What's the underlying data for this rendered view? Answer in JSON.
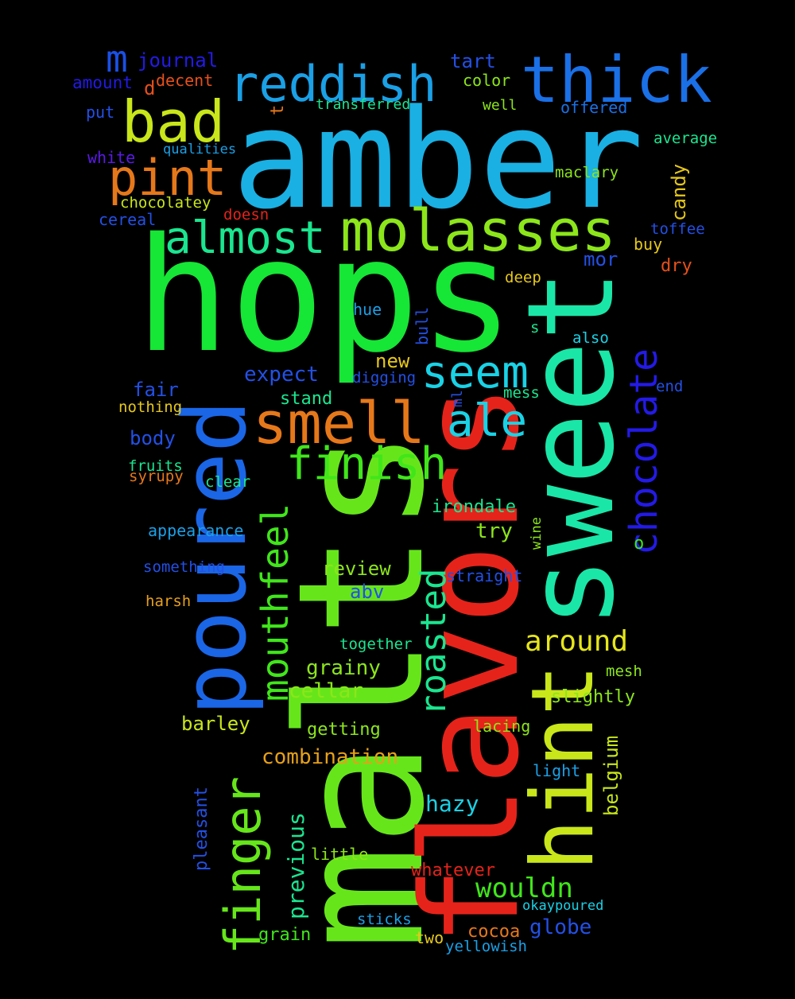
{
  "words": [
    {
      "text": "amber",
      "color": "#1ab0e3"
    },
    {
      "text": "hops",
      "color": "#16e635"
    },
    {
      "text": "malts",
      "color": "#66e61a"
    },
    {
      "text": "flavors",
      "color": "#e6231a"
    },
    {
      "text": "sweet",
      "color": "#1ae6a7"
    },
    {
      "text": "poured",
      "color": "#1a66e6"
    },
    {
      "text": "hint",
      "color": "#c8e61a"
    },
    {
      "text": "thick",
      "color": "#1a70e6"
    },
    {
      "text": "reddish",
      "color": "#1aa0e6"
    },
    {
      "text": "bad",
      "color": "#c8e61a"
    },
    {
      "text": "molasses",
      "color": "#8ce61a"
    },
    {
      "text": "smell",
      "color": "#e6781a"
    },
    {
      "text": "pint",
      "color": "#e6781a"
    },
    {
      "text": "almost",
      "color": "#1ae690"
    },
    {
      "text": "finish",
      "color": "#40e61a"
    },
    {
      "text": "seem",
      "color": "#1ad2e6"
    },
    {
      "text": "ale",
      "color": "#1ad2e6"
    },
    {
      "text": "mouthfeel",
      "color": "#40e61a"
    },
    {
      "text": "chocolate",
      "color": "#231ae6"
    },
    {
      "text": "finger",
      "color": "#66e61a"
    },
    {
      "text": "roasted",
      "color": "#1ae690"
    },
    {
      "text": "m",
      "color": "#1a50e6"
    },
    {
      "text": "journal",
      "color": "#231ae6"
    },
    {
      "text": "amount",
      "color": "#231ae6"
    },
    {
      "text": "d",
      "color": "#e6501a"
    },
    {
      "text": "decent",
      "color": "#e6501a"
    },
    {
      "text": "tart",
      "color": "#2350e6"
    },
    {
      "text": "color",
      "color": "#8ce61a"
    },
    {
      "text": "transferred",
      "color": "#1ae690"
    },
    {
      "text": "well",
      "color": "#8ce61a"
    },
    {
      "text": "offered",
      "color": "#1a70e6"
    },
    {
      "text": "t",
      "color": "#e6781a"
    },
    {
      "text": "put",
      "color": "#2350e6"
    },
    {
      "text": "white",
      "color": "#5a1ae6"
    },
    {
      "text": "qualities",
      "color": "#1aa0e6"
    },
    {
      "text": "average",
      "color": "#1ae690"
    },
    {
      "text": "maclary",
      "color": "#8ce61a"
    },
    {
      "text": "candy",
      "color": "#e6c81a"
    },
    {
      "text": "chocolatey",
      "color": "#c8e61a"
    },
    {
      "text": "cereal",
      "color": "#2350e6"
    },
    {
      "text": "doesn",
      "color": "#e6231a"
    },
    {
      "text": "toffee",
      "color": "#2350e6"
    },
    {
      "text": "buy",
      "color": "#e6c81a"
    },
    {
      "text": "dry",
      "color": "#e6501a"
    },
    {
      "text": "mor",
      "color": "#2350e6"
    },
    {
      "text": "deep",
      "color": "#e6c81a"
    },
    {
      "text": "hue",
      "color": "#1aa0e6"
    },
    {
      "text": "bull",
      "color": "#2350e6"
    },
    {
      "text": "s",
      "color": "#1ae690"
    },
    {
      "text": "also",
      "color": "#1ad2e6"
    },
    {
      "text": "expect",
      "color": "#2350e6"
    },
    {
      "text": "new",
      "color": "#e6c81a"
    },
    {
      "text": "digging",
      "color": "#2350e6"
    },
    {
      "text": "mess",
      "color": "#1ae690"
    },
    {
      "text": "end",
      "color": "#2350e6"
    },
    {
      "text": "fair",
      "color": "#2350e6"
    },
    {
      "text": "stand",
      "color": "#1ae690"
    },
    {
      "text": "ml",
      "color": "#2350e6"
    },
    {
      "text": "nothing",
      "color": "#e6c81a"
    },
    {
      "text": "body",
      "color": "#2350e6"
    },
    {
      "text": "fruits",
      "color": "#1ae690"
    },
    {
      "text": "syrupy",
      "color": "#e6781a"
    },
    {
      "text": "clear",
      "color": "#1ae690"
    },
    {
      "text": "irondale",
      "color": "#1ae690"
    },
    {
      "text": "try",
      "color": "#8ce61a"
    },
    {
      "text": "wine",
      "color": "#8ce61a"
    },
    {
      "text": "o",
      "color": "#40e61a"
    },
    {
      "text": "appearance",
      "color": "#1aa0e6"
    },
    {
      "text": "something",
      "color": "#2350e6"
    },
    {
      "text": "review",
      "color": "#8ce61a"
    },
    {
      "text": "straight",
      "color": "#2350e6"
    },
    {
      "text": "abv",
      "color": "#2350e6"
    },
    {
      "text": "around",
      "color": "#e6e61a"
    },
    {
      "text": "harsh",
      "color": "#e6a01a"
    },
    {
      "text": "together",
      "color": "#1ae690"
    },
    {
      "text": "grainy",
      "color": "#8ce61a"
    },
    {
      "text": "mesh",
      "color": "#8ce61a"
    },
    {
      "text": "cellar",
      "color": "#8ce61a"
    },
    {
      "text": "slightly",
      "color": "#8ce61a"
    },
    {
      "text": "barley",
      "color": "#c8e61a"
    },
    {
      "text": "getting",
      "color": "#8ce61a"
    },
    {
      "text": "lacing",
      "color": "#8ce61a"
    },
    {
      "text": "belgium",
      "color": "#c8e61a"
    },
    {
      "text": "combination",
      "color": "#e6a01a"
    },
    {
      "text": "light",
      "color": "#1aa0e6"
    },
    {
      "text": "pleasant",
      "color": "#2350e6"
    },
    {
      "text": "previous",
      "color": "#1ae690"
    },
    {
      "text": "hazy",
      "color": "#1ad2e6"
    },
    {
      "text": "little",
      "color": "#8ce61a"
    },
    {
      "text": "whatever",
      "color": "#e6231a"
    },
    {
      "text": "wouldn",
      "color": "#40e61a"
    },
    {
      "text": "okaypoured",
      "color": "#1ad2e6"
    },
    {
      "text": "sticks",
      "color": "#1aa0e6"
    },
    {
      "text": "globe",
      "color": "#2350e6"
    },
    {
      "text": "grain",
      "color": "#40e61a"
    },
    {
      "text": "cocoa",
      "color": "#e6781a"
    },
    {
      "text": "two",
      "color": "#e6c81a"
    },
    {
      "text": "yellowish",
      "color": "#1aa0e6"
    }
  ]
}
